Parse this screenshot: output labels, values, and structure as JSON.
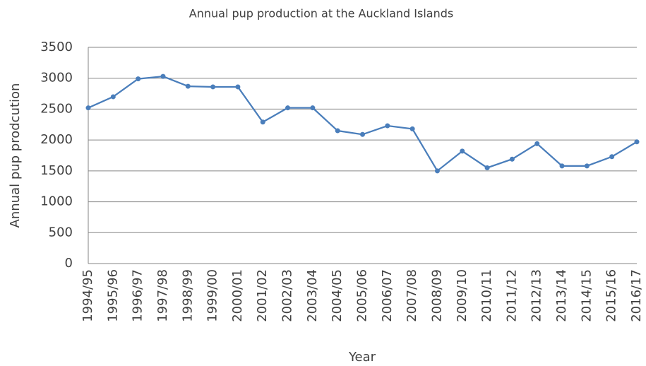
{
  "chart_data": {
    "type": "line",
    "title": "Annual pup production at the Auckland Islands",
    "x_label": "Year",
    "y_label": "Annual pup prodcution",
    "categories": [
      "1994/95",
      "1995/96",
      "1996/97",
      "1997/98",
      "1998/99",
      "1999/00",
      "2000/01",
      "2001/02",
      "2002/03",
      "2003/04",
      "2004/05",
      "2005/06",
      "2006/07",
      "2007/08",
      "2008/09",
      "2009/10",
      "2010/11",
      "2011/12",
      "2012/13",
      "2013/14",
      "2014/15",
      "2015/16",
      "2016/17"
    ],
    "values": [
      2520,
      2700,
      2990,
      3030,
      2870,
      2860,
      2860,
      2290,
      2520,
      2520,
      2150,
      2090,
      2230,
      2180,
      1500,
      1820,
      1550,
      1690,
      1940,
      1580,
      1580,
      1730,
      1970
    ],
    "color": "#4a7ebb",
    "ylim": [
      0,
      3500
    ],
    "yticks": [
      0,
      500,
      1000,
      1500,
      2000,
      2500,
      3000,
      3500
    ],
    "grid": true
  }
}
